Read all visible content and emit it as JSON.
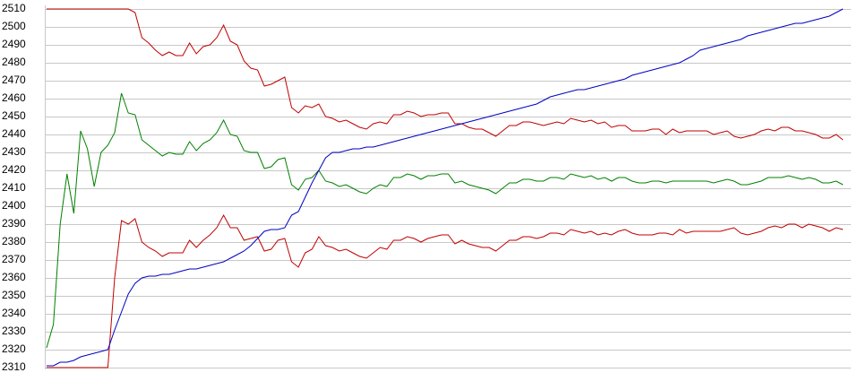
{
  "chart_data": {
    "type": "line",
    "ylim": [
      2310,
      2510
    ],
    "yticks": [
      2310,
      2320,
      2330,
      2340,
      2350,
      2360,
      2370,
      2380,
      2390,
      2400,
      2410,
      2420,
      2430,
      2440,
      2450,
      2460,
      2470,
      2480,
      2490,
      2500,
      2510
    ],
    "grid": true,
    "series": [
      {
        "color": "#c00000",
        "values": [
          2510,
          2510,
          2510,
          2510,
          2510,
          2510,
          2510,
          2510,
          2510,
          2510,
          2510,
          2510,
          2510,
          2508,
          2494,
          2491,
          2487,
          2484,
          2486,
          2484,
          2484,
          2491,
          2485,
          2489,
          2490,
          2494,
          2501,
          2492,
          2490,
          2481,
          2477,
          2476,
          2467,
          2468,
          2470,
          2472,
          2455,
          2452,
          2456,
          2455,
          2457,
          2450,
          2449,
          2447,
          2448,
          2446,
          2444,
          2443,
          2446,
          2447,
          2446,
          2451,
          2451,
          2453,
          2452,
          2450,
          2451,
          2451,
          2452,
          2452,
          2446,
          2446,
          2444,
          2443,
          2443,
          2441,
          2439,
          2442,
          2445,
          2445,
          2447,
          2447,
          2446,
          2445,
          2446,
          2447,
          2446,
          2449,
          2448,
          2447,
          2448,
          2446,
          2447,
          2444,
          2445,
          2445,
          2442,
          2442,
          2442,
          2443,
          2443,
          2440,
          2443,
          2441,
          2442,
          2442,
          2442,
          2442,
          2440,
          2441,
          2442,
          2439,
          2438,
          2439,
          2440,
          2442,
          2443,
          2442,
          2444,
          2444,
          2442,
          2442,
          2441,
          2440,
          2438,
          2438,
          2440,
          2437
        ]
      },
      {
        "color": "#c00000",
        "values": [
          2310,
          2310,
          2310,
          2310,
          2310,
          2310,
          2310,
          2310,
          2310,
          2310,
          2360,
          2392,
          2390,
          2393,
          2380,
          2377,
          2375,
          2372,
          2374,
          2374,
          2374,
          2381,
          2377,
          2381,
          2384,
          2388,
          2395,
          2388,
          2388,
          2381,
          2382,
          2383,
          2375,
          2376,
          2381,
          2382,
          2369,
          2366,
          2374,
          2376,
          2383,
          2378,
          2377,
          2375,
          2376,
          2374,
          2372,
          2371,
          2374,
          2377,
          2376,
          2381,
          2381,
          2383,
          2382,
          2380,
          2382,
          2383,
          2384,
          2384,
          2379,
          2381,
          2379,
          2378,
          2377,
          2377,
          2375,
          2378,
          2381,
          2381,
          2383,
          2383,
          2382,
          2383,
          2385,
          2385,
          2384,
          2387,
          2386,
          2385,
          2386,
          2384,
          2385,
          2384,
          2386,
          2387,
          2385,
          2384,
          2384,
          2384,
          2385,
          2385,
          2384,
          2387,
          2385,
          2386,
          2386,
          2386,
          2386,
          2386,
          2387,
          2388,
          2385,
          2384,
          2385,
          2386,
          2388,
          2389,
          2388,
          2390,
          2390,
          2388,
          2390,
          2389,
          2388,
          2386,
          2388,
          2387
        ]
      },
      {
        "color": "#008000",
        "values": [
          2321,
          2334,
          2390,
          2418,
          2396,
          2442,
          2432,
          2411,
          2430,
          2434,
          2441,
          2463,
          2452,
          2451,
          2437,
          2434,
          2431,
          2428,
          2430,
          2429,
          2429,
          2436,
          2431,
          2435,
          2437,
          2441,
          2448,
          2440,
          2439,
          2431,
          2430,
          2430,
          2421,
          2422,
          2426,
          2427,
          2412,
          2409,
          2415,
          2416,
          2420,
          2414,
          2413,
          2411,
          2412,
          2410,
          2408,
          2407,
          2410,
          2412,
          2411,
          2416,
          2416,
          2418,
          2417,
          2415,
          2417,
          2417,
          2418,
          2418,
          2413,
          2414,
          2412,
          2411,
          2410,
          2409,
          2407,
          2410,
          2413,
          2413,
          2415,
          2415,
          2414,
          2414,
          2416,
          2416,
          2415,
          2418,
          2417,
          2416,
          2417,
          2415,
          2416,
          2414,
          2416,
          2416,
          2414,
          2413,
          2413,
          2414,
          2414,
          2413,
          2414,
          2414,
          2414,
          2414,
          2414,
          2414,
          2413,
          2414,
          2415,
          2414,
          2412,
          2412,
          2413,
          2414,
          2416,
          2416,
          2416,
          2417,
          2416,
          2415,
          2416,
          2415,
          2413,
          2413,
          2414,
          2412
        ]
      },
      {
        "color": "#0000c0",
        "values": [
          2311,
          2311,
          2313,
          2313,
          2314,
          2316,
          2317,
          2318,
          2319,
          2320,
          2331,
          2341,
          2351,
          2357,
          2360,
          2361,
          2361,
          2362,
          2362,
          2363,
          2364,
          2365,
          2365,
          2366,
          2367,
          2368,
          2369,
          2371,
          2373,
          2375,
          2378,
          2382,
          2386,
          2387,
          2387,
          2388,
          2395,
          2397,
          2405,
          2413,
          2420,
          2427,
          2430,
          2430,
          2431,
          2432,
          2432,
          2433,
          2433,
          2434,
          2435,
          2436,
          2437,
          2438,
          2439,
          2440,
          2441,
          2442,
          2443,
          2444,
          2445,
          2446,
          2447,
          2448,
          2449,
          2450,
          2451,
          2452,
          2453,
          2454,
          2455,
          2456,
          2457,
          2459,
          2461,
          2462,
          2463,
          2464,
          2465,
          2465,
          2466,
          2467,
          2468,
          2469,
          2470,
          2471,
          2473,
          2474,
          2475,
          2476,
          2477,
          2478,
          2479,
          2480,
          2482,
          2484,
          2487,
          2488,
          2489,
          2490,
          2491,
          2492,
          2493,
          2495,
          2496,
          2497,
          2498,
          2499,
          2500,
          2501,
          2502,
          2502,
          2503,
          2504,
          2505,
          2506,
          2508,
          2510
        ]
      }
    ]
  }
}
